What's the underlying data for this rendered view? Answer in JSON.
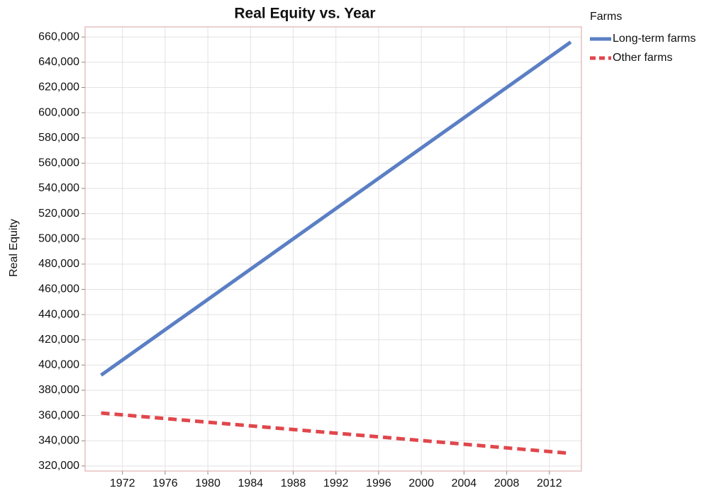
{
  "chart_data": {
    "type": "line",
    "title": "Real Equity vs. Year",
    "y_label": "Real Equity",
    "legend_title": "Farms",
    "legend_position": "right",
    "grid": true,
    "x": [
      1970,
      2014
    ],
    "series": [
      {
        "name": "Long-term farms",
        "color": "#5b7fc4",
        "dash": "solid",
        "values": [
          392000,
          656000
        ]
      },
      {
        "name": "Other farms",
        "color": "#e0474c",
        "dash": "dashed",
        "values": [
          362000,
          330000
        ]
      }
    ],
    "xlim": [
      1968.5,
      2015
    ],
    "xticks": [
      1972,
      1976,
      1980,
      1984,
      1988,
      1992,
      1996,
      2000,
      2004,
      2008,
      2012
    ],
    "ylim": [
      316000,
      668000
    ],
    "yticks": [
      {
        "value": 320000,
        "label": "320,000"
      },
      {
        "value": 340000,
        "label": "340,000"
      },
      {
        "value": 360000,
        "label": "360,000"
      },
      {
        "value": 380000,
        "label": "380,000"
      },
      {
        "value": 400000,
        "label": "400,000"
      },
      {
        "value": 420000,
        "label": "420,000"
      },
      {
        "value": 440000,
        "label": "440,000"
      },
      {
        "value": 460000,
        "label": "460,000"
      },
      {
        "value": 480000,
        "label": "480,000"
      },
      {
        "value": 500000,
        "label": "500,000"
      },
      {
        "value": 520000,
        "label": "520,000"
      },
      {
        "value": 540000,
        "label": "540,000"
      },
      {
        "value": 560000,
        "label": "560,000"
      },
      {
        "value": 580000,
        "label": "580,000"
      },
      {
        "value": 600000,
        "label": "600,000"
      },
      {
        "value": 620000,
        "label": "620,000"
      },
      {
        "value": 640000,
        "label": "640,000"
      },
      {
        "value": 660000,
        "label": "660,000"
      }
    ]
  }
}
